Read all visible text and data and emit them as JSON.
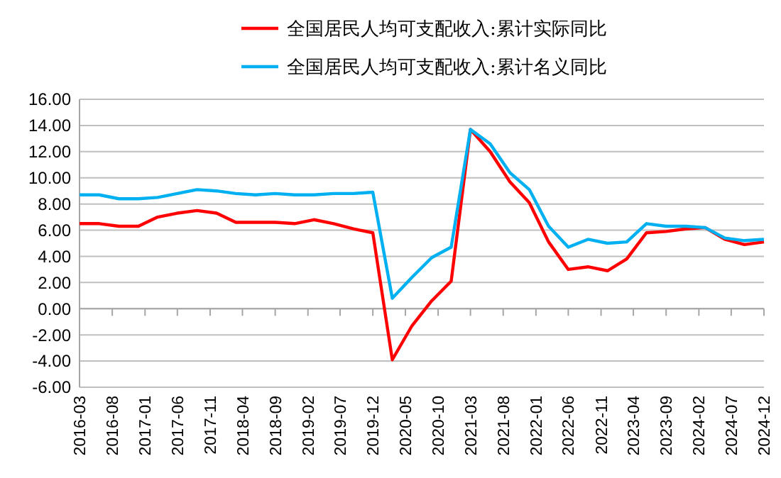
{
  "chart_data": {
    "type": "line",
    "x": [
      "2016-03",
      "2016-06",
      "2016-09",
      "2016-12",
      "2017-03",
      "2017-06",
      "2017-09",
      "2017-12",
      "2018-03",
      "2018-06",
      "2018-09",
      "2018-12",
      "2019-03",
      "2019-06",
      "2019-09",
      "2019-12",
      "2020-03",
      "2020-06",
      "2020-09",
      "2020-12",
      "2021-03",
      "2021-06",
      "2021-09",
      "2021-12",
      "2022-03",
      "2022-06",
      "2022-09",
      "2022-12",
      "2023-03",
      "2023-06",
      "2023-09",
      "2023-12",
      "2024-03",
      "2024-06",
      "2024-09",
      "2024-12"
    ],
    "series": [
      {
        "name": "全国居民人均可支配收入:累计实际同比",
        "color": "#ff0000",
        "values": [
          6.5,
          6.5,
          6.3,
          6.3,
          7.0,
          7.3,
          7.5,
          7.3,
          6.6,
          6.6,
          6.6,
          6.5,
          6.8,
          6.5,
          6.1,
          5.8,
          -3.9,
          -1.3,
          0.6,
          2.1,
          13.7,
          12.0,
          9.7,
          8.1,
          5.1,
          3.0,
          3.2,
          2.9,
          3.8,
          5.8,
          5.9,
          6.1,
          6.2,
          5.3,
          4.9,
          5.1
        ]
      },
      {
        "name": "全国居民人均可支配收入:累计名义同比",
        "color": "#00b0f0",
        "values": [
          8.7,
          8.7,
          8.4,
          8.4,
          8.5,
          8.8,
          9.1,
          9.0,
          8.8,
          8.7,
          8.8,
          8.7,
          8.7,
          8.8,
          8.8,
          8.9,
          0.8,
          2.4,
          3.9,
          4.7,
          13.7,
          12.6,
          10.4,
          9.1,
          6.3,
          4.7,
          5.3,
          5.0,
          5.1,
          6.5,
          6.3,
          6.3,
          6.2,
          5.4,
          5.2,
          5.3
        ]
      }
    ],
    "xlim": [
      "2016-03",
      "2024-12"
    ],
    "xticks": [
      "2016-03",
      "2016-08",
      "2017-01",
      "2017-06",
      "2017-11",
      "2018-04",
      "2018-09",
      "2019-02",
      "2019-07",
      "2019-12",
      "2020-05",
      "2020-10",
      "2021-03",
      "2021-08",
      "2022-01",
      "2022-06",
      "2022-11",
      "2023-04",
      "2023-09",
      "2024-02",
      "2024-07",
      "2024-12"
    ],
    "ylim": [
      -6,
      16
    ],
    "yticks": [
      {
        "value": -6,
        "label": "-6.00"
      },
      {
        "value": -4,
        "label": "-4.00"
      },
      {
        "value": -2,
        "label": "-2.00"
      },
      {
        "value": 0,
        "label": "0.00"
      },
      {
        "value": 2,
        "label": "2.00"
      },
      {
        "value": 4,
        "label": "4.00"
      },
      {
        "value": 6,
        "label": "6.00"
      },
      {
        "value": 8,
        "label": "8.00"
      },
      {
        "value": 10,
        "label": "10.00"
      },
      {
        "value": 12,
        "label": "12.00"
      },
      {
        "value": 14,
        "label": "14.00"
      },
      {
        "value": 16,
        "label": "16.00"
      }
    ],
    "grid": "y",
    "legend": "top",
    "marker": "none",
    "line_style": "solid"
  }
}
